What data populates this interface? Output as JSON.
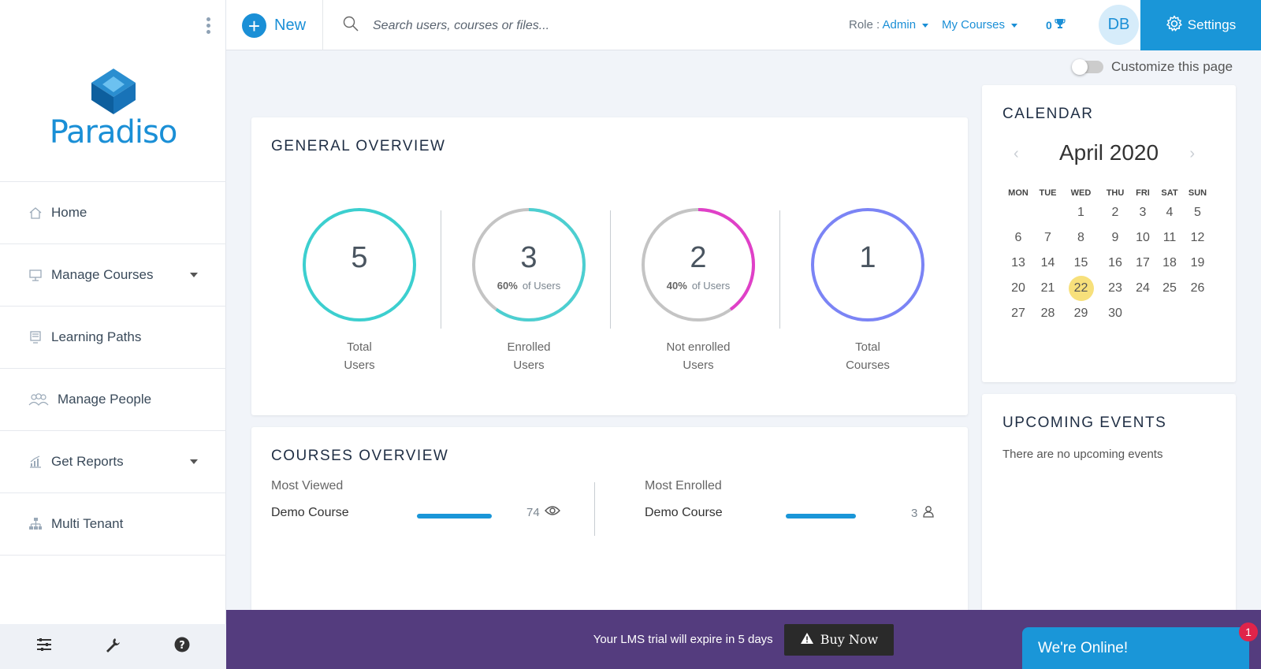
{
  "brand": {
    "name": "Paradiso"
  },
  "topbar": {
    "new_label": "New",
    "search_placeholder": "Search users, courses or files...",
    "role_label": "Role :",
    "role_value": "Admin",
    "mycourses_label": "My Courses",
    "trophy_count": "0",
    "avatar_initials": "DB",
    "settings_label": "Settings"
  },
  "sidebar": {
    "items": [
      {
        "label": "Home",
        "icon": "home-icon"
      },
      {
        "label": "Manage Courses",
        "icon": "courses-icon"
      },
      {
        "label": "Learning Paths",
        "icon": "learning-paths-icon"
      },
      {
        "label": "Manage People",
        "icon": "people-icon"
      },
      {
        "label": "Get Reports",
        "icon": "reports-icon"
      },
      {
        "label": "Multi Tenant",
        "icon": "tenant-icon"
      }
    ],
    "footer_icons": [
      "sliders-icon",
      "wrench-icon",
      "help-icon"
    ]
  },
  "customize": {
    "label": "Customize this page",
    "enabled": false
  },
  "general_overview": {
    "title": "GENERAL OVERVIEW",
    "stats": [
      {
        "value": "5",
        "label_line1": "Total",
        "label_line2": "Users",
        "color": "#3ccfcf"
      },
      {
        "value": "3",
        "pct": "60%",
        "pct_suffix": "of Users",
        "label_line1": "Enrolled",
        "label_line2": "Users",
        "fraction": 0.6,
        "color": "#4ccfd1"
      },
      {
        "value": "2",
        "pct": "40%",
        "pct_suffix": "of Users",
        "label_line1": "Not enrolled",
        "label_line2": "Users",
        "fraction": 0.4,
        "color": "#e040c8"
      },
      {
        "value": "1",
        "label_line1": "Total",
        "label_line2": "Courses",
        "color": "#7b84f5"
      }
    ]
  },
  "courses_overview": {
    "title": "COURSES OVERVIEW",
    "most_viewed": {
      "label": "Most Viewed",
      "course": "Demo Course",
      "count": "74"
    },
    "most_enrolled": {
      "label": "Most Enrolled",
      "course": "Demo Course",
      "count": "3"
    }
  },
  "calendar": {
    "title": "CALENDAR",
    "month": "April 2020",
    "weekdays": [
      "MON",
      "TUE",
      "WED",
      "THU",
      "FRI",
      "SAT",
      "SUN"
    ],
    "weeks": [
      [
        "",
        "",
        "1",
        "2",
        "3",
        "4",
        "5"
      ],
      [
        "6",
        "7",
        "8",
        "9",
        "10",
        "11",
        "12"
      ],
      [
        "13",
        "14",
        "15",
        "16",
        "17",
        "18",
        "19"
      ],
      [
        "20",
        "21",
        "22",
        "23",
        "24",
        "25",
        "26"
      ],
      [
        "27",
        "28",
        "29",
        "30",
        "",
        "",
        ""
      ]
    ],
    "today": "22"
  },
  "upcoming_events": {
    "title": "UPCOMING EVENTS",
    "empty_text": "There are no upcoming events"
  },
  "banner": {
    "message": "Your LMS trial will expire in 5 days",
    "buy_label": "Buy Now"
  },
  "chat": {
    "label": "We're Online!",
    "badge": "1"
  },
  "colors": {
    "accent": "#1a96d8",
    "banner": "#543c7e",
    "today": "#f7e07b"
  }
}
